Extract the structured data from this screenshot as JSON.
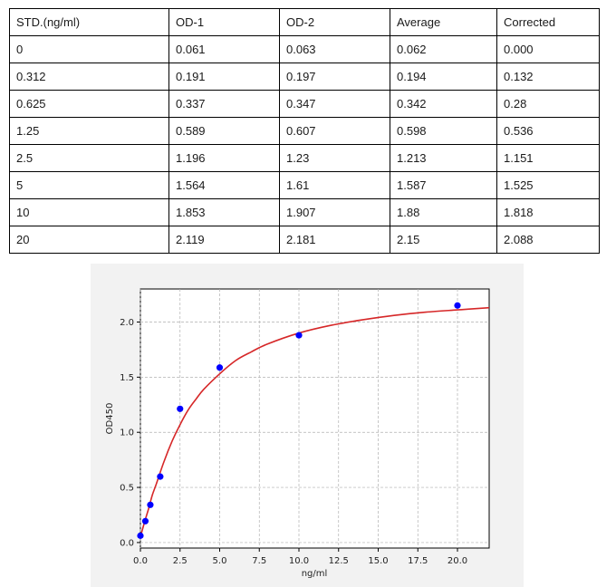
{
  "table": {
    "headers": [
      "STD.(ng/ml)",
      "OD-1",
      "OD-2",
      "Average",
      "Corrected"
    ],
    "rows": [
      [
        "0",
        "0.061",
        "0.063",
        "0.062",
        "0.000"
      ],
      [
        "0.312",
        "0.191",
        "0.197",
        "0.194",
        "0.132"
      ],
      [
        "0.625",
        "0.337",
        "0.347",
        "0.342",
        "0.28"
      ],
      [
        "1.25",
        "0.589",
        "0.607",
        "0.598",
        "0.536"
      ],
      [
        "2.5",
        "1.196",
        "1.23",
        "1.213",
        "1.151"
      ],
      [
        "5",
        "1.564",
        "1.61",
        "1.587",
        "1.525"
      ],
      [
        "10",
        "1.853",
        "1.907",
        "1.88",
        "1.818"
      ],
      [
        "20",
        "2.119",
        "2.181",
        "2.15",
        "2.088"
      ]
    ]
  },
  "chart_data": {
    "type": "scatter",
    "xlabel": "ng/ml",
    "ylabel": "OD450",
    "xlim": [
      0,
      22
    ],
    "ylim": [
      -0.05,
      2.3
    ],
    "xticks": [
      "0.0",
      "2.5",
      "5.0",
      "7.5",
      "10.0",
      "12.5",
      "15.0",
      "17.5",
      "20.0"
    ],
    "yticks": [
      "0.0",
      "0.5",
      "1.0",
      "1.5",
      "2.0"
    ],
    "grid": true,
    "points": {
      "x": [
        0,
        0.312,
        0.625,
        1.25,
        2.5,
        5,
        10,
        20
      ],
      "y": [
        0.062,
        0.194,
        0.342,
        0.598,
        1.213,
        1.587,
        1.88,
        2.15
      ],
      "color": "#0000ff"
    },
    "fit_curve": {
      "x": [
        0,
        0.25,
        0.5,
        0.75,
        1,
        1.5,
        2,
        2.5,
        3,
        3.5,
        4,
        5,
        6,
        7,
        8,
        10,
        12,
        14,
        16,
        18,
        20,
        22
      ],
      "y": [
        0.05,
        0.18,
        0.3,
        0.43,
        0.53,
        0.74,
        0.92,
        1.07,
        1.2,
        1.3,
        1.39,
        1.53,
        1.65,
        1.73,
        1.8,
        1.9,
        1.97,
        2.02,
        2.06,
        2.09,
        2.11,
        2.13
      ],
      "color": "#d62728"
    }
  }
}
